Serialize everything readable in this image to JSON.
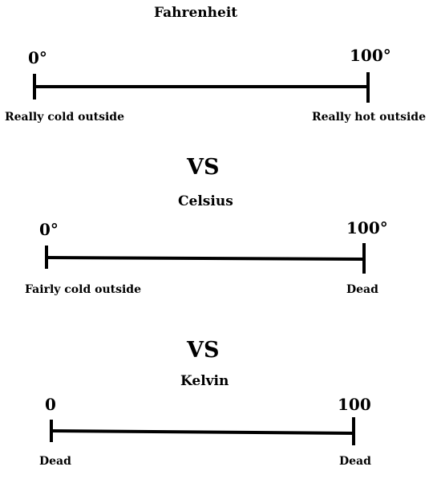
{
  "scales": [
    {
      "title": "Fahrenheit",
      "low_value": "0°",
      "high_value": "100°",
      "low_caption": "Really cold outside",
      "high_caption": "Really hot outside"
    },
    {
      "title": "Celsius",
      "low_value": "0°",
      "high_value": "100°",
      "low_caption": "Fairly cold outside",
      "high_caption": "Dead"
    },
    {
      "title": "Kelvin",
      "low_value": "0",
      "high_value": "100",
      "low_caption": "Dead",
      "high_caption": "Dead"
    }
  ],
  "separators": [
    "VS",
    "VS"
  ],
  "colors": {
    "ink": "#000000",
    "background": "#ffffff"
  }
}
